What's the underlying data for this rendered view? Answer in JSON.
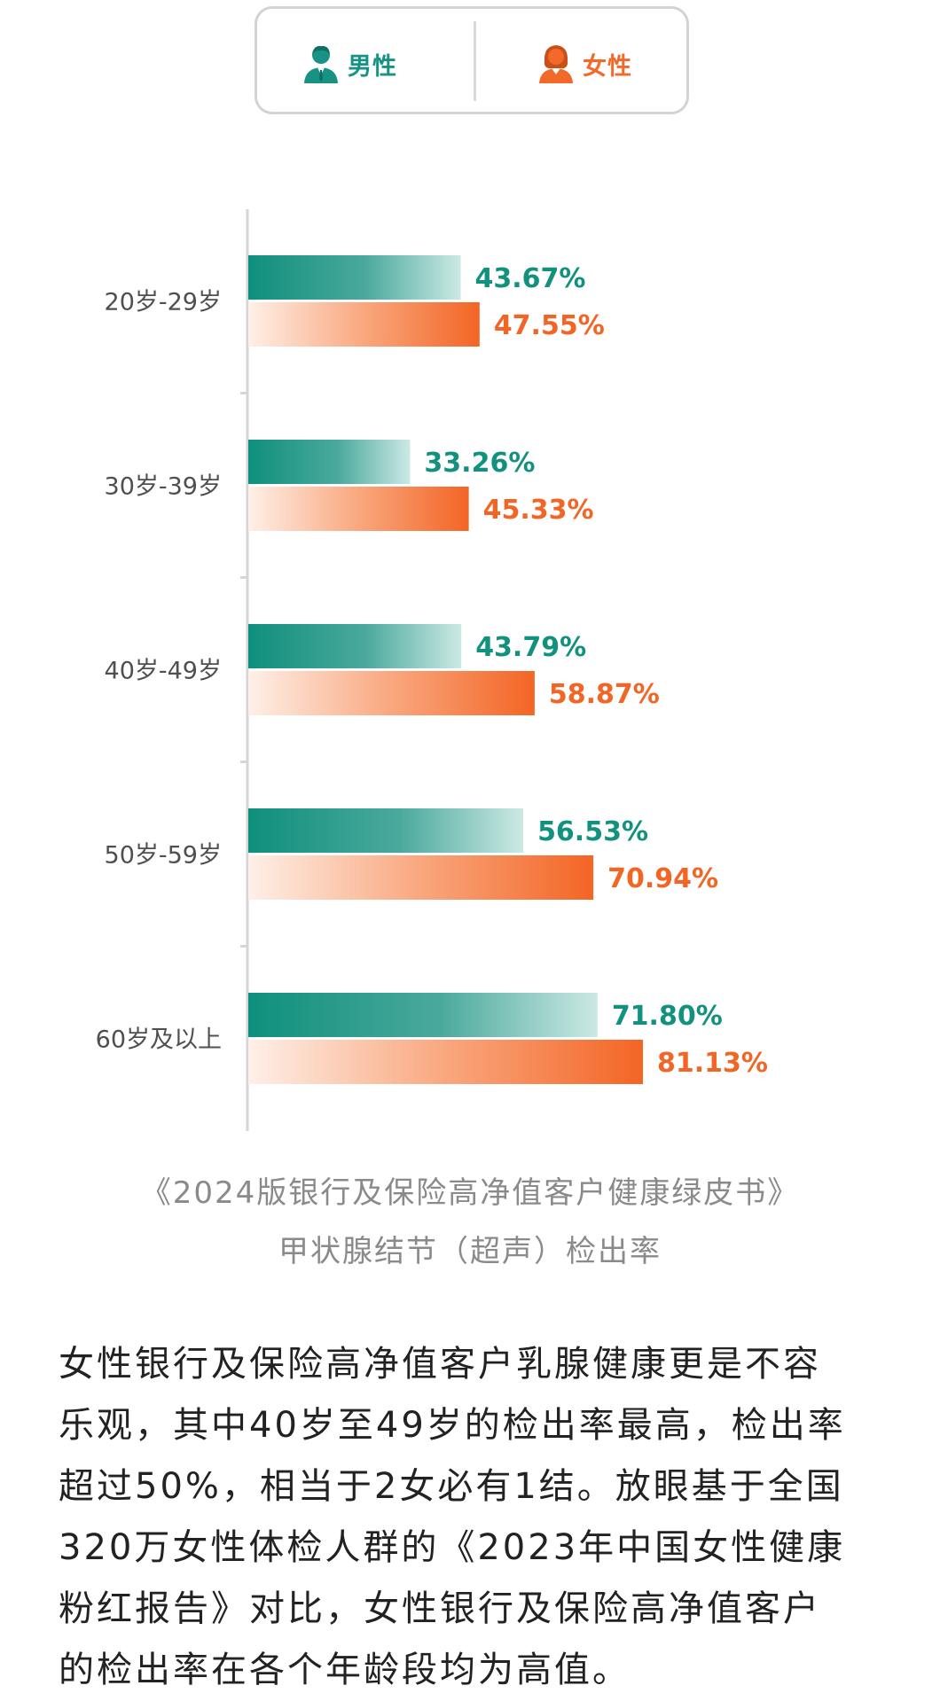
{
  "legend": {
    "male_label": "男性",
    "female_label": "女性",
    "male_icon": "man-icon",
    "female_icon": "woman-icon"
  },
  "colors": {
    "male": "#13917f",
    "male_light": "#c7e6e1",
    "female": "#f36525",
    "female_light": "#fde4d6",
    "axis": "#d6d6d6"
  },
  "chart_data": {
    "type": "bar",
    "orientation": "horizontal",
    "categories": [
      "20岁-29岁",
      "30岁-39岁",
      "40岁-49岁",
      "50岁-59岁",
      "60岁及以上"
    ],
    "series": [
      {
        "name": "男性",
        "values": [
          43.67,
          33.26,
          43.79,
          56.53,
          71.8
        ],
        "labels": [
          "43.67%",
          "33.26%",
          "43.79%",
          "56.53%",
          "71.80%"
        ]
      },
      {
        "name": "女性",
        "values": [
          47.55,
          45.33,
          58.87,
          70.94,
          81.13
        ],
        "labels": [
          "47.55%",
          "45.33%",
          "58.87%",
          "70.94%",
          "81.13%"
        ]
      }
    ],
    "xlim": [
      0,
      100
    ],
    "grid": false,
    "legend_position": "top-center"
  },
  "caption": {
    "line1": "《2024版银行及保险高净值客户健康绿皮书》",
    "line2": "甲状腺结节（超声）检出率"
  },
  "paragraph": {
    "lines": [
      "女性银行及保险高净值客户乳腺健康更是不容",
      "乐观，其中40岁至49岁的检出率最高，检出率",
      "超过50%，相当于2女必有1结。放眼基于全国",
      "320万女性体检人群的《2023年中国女性健康",
      "粉红报告》对比，女性银行及保险高净值客户",
      "的检出率在各个年龄段均为高值。"
    ]
  }
}
